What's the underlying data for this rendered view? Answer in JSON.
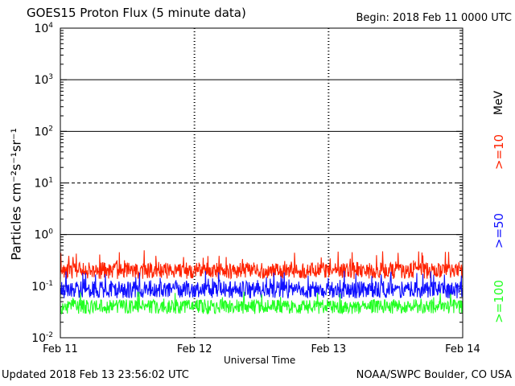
{
  "header": {
    "title": "GOES15 Proton Flux (5 minute data)",
    "begin": "Begin: 2018 Feb 11 0000 UTC"
  },
  "footer": {
    "updated": "Updated 2018 Feb 13 23:56:02 UTC",
    "credit": "NOAA/SWPC Boulder, CO USA"
  },
  "colors": {
    "ge10": "#ff2200",
    "ge50": "#1010ff",
    "ge100": "#22ff22",
    "axis": "#000000"
  },
  "chart_data": {
    "type": "line",
    "title": "GOES15 Proton Flux (5 minute data)",
    "xlabel": "Universal Time",
    "ylabel": "Particles cm⁻²s⁻¹sr⁻¹",
    "yscale": "log",
    "ylim": [
      0.01,
      10000
    ],
    "xlim": [
      "Feb 11",
      "Feb 14"
    ],
    "x_ticks": [
      "Feb 11",
      "Feb 12",
      "Feb 13",
      "Feb 14"
    ],
    "y_ticks": [
      {
        "base": "10",
        "exp": "-2",
        "value": 0.01
      },
      {
        "base": "10",
        "exp": "-1",
        "value": 0.1
      },
      {
        "base": "10",
        "exp": "0",
        "value": 1
      },
      {
        "base": "10",
        "exp": "1",
        "value": 10
      },
      {
        "base": "10",
        "exp": "2",
        "value": 100
      },
      {
        "base": "10",
        "exp": "3",
        "value": 1000
      },
      {
        "base": "10",
        "exp": "4",
        "value": 10000
      }
    ],
    "threshold_lines": [
      {
        "value": 10,
        "style": "dashed"
      },
      {
        "value": 1,
        "style": "solid"
      },
      {
        "value": 100,
        "style": "solid"
      },
      {
        "value": 1000,
        "style": "solid"
      }
    ],
    "grid": "horizontal lines at decades, dashed verticals at day boundaries",
    "legend_placement": "right side, vertical",
    "unit_label": "MeV",
    "series": [
      {
        "name": ">=10",
        "color_key": "ge10",
        "typical": 0.2,
        "min": 0.13,
        "max": 0.5
      },
      {
        "name": ">=50",
        "color_key": "ge50",
        "typical": 0.085,
        "min": 0.05,
        "max": 0.2
      },
      {
        "name": ">=100",
        "color_key": "ge100",
        "typical": 0.04,
        "min": 0.025,
        "max": 0.08
      }
    ]
  }
}
